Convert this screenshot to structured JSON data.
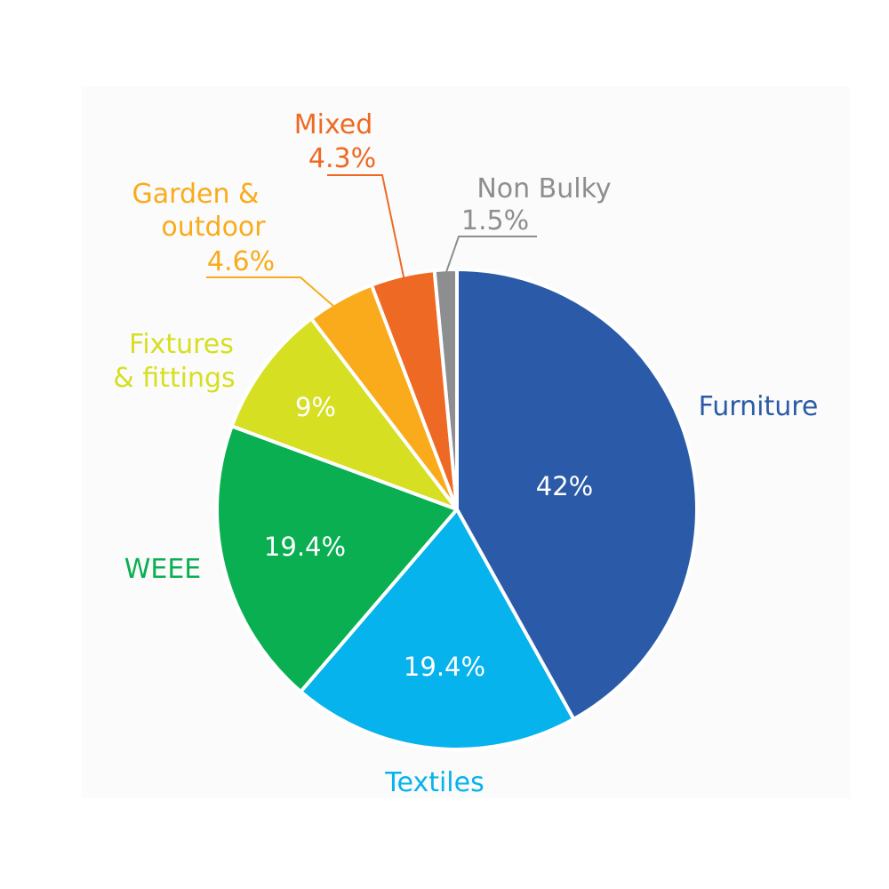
{
  "chart_data": {
    "type": "pie",
    "slices": [
      {
        "label": "Furniture",
        "value": 42,
        "value_label": "42%",
        "color": "#2b5ba8"
      },
      {
        "label": "Textiles",
        "value": 19.4,
        "value_label": "19.4%",
        "color": "#06b3ec"
      },
      {
        "label": "WEEE",
        "value": 19.4,
        "value_label": "19.4%",
        "color": "#0aaf52"
      },
      {
        "label": "Fixtures & fittings",
        "value": 9,
        "value_label": "9%",
        "color": "#d6df21"
      },
      {
        "label": "Garden & outdoor",
        "value": 4.6,
        "value_label": "4.6%",
        "color": "#f9ab1b"
      },
      {
        "label": "Mixed",
        "value": 4.3,
        "value_label": "4.3%",
        "color": "#ee6a24"
      },
      {
        "label": "Non Bulky",
        "value": 1.5,
        "value_label": "1.5%",
        "color": "#8d8e90"
      }
    ],
    "text_colors": {
      "Furniture": "#2b5ba8",
      "Textiles": "#06b3ec",
      "WEEE": "#0aaf52",
      "Fixtures & fittings": "#d6df21",
      "Garden & outdoor": "#f9ab1b",
      "Mixed": "#ee6a24",
      "Non Bulky": "#8d8e90"
    }
  }
}
